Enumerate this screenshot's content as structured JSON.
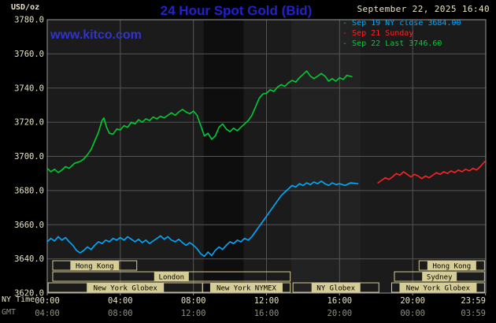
{
  "header": {
    "units": "USD/oz",
    "title": "24 Hour Spot Gold (Bid)",
    "datetime": "September 22, 2025 16:40",
    "watermark": "www.kitco.com"
  },
  "legend": [
    {
      "label": "Sep 19 NY close 3684.00",
      "color": "#00aaff"
    },
    {
      "label": "Sep 21 Sunday",
      "color": "#ff2222"
    },
    {
      "label": "Sep 22 Last 3746.60",
      "color": "#00cc33"
    }
  ],
  "axis": {
    "left_title": "NY Time",
    "gmt_label": "GMT",
    "ny_ticks": [
      "00:00",
      "04:00",
      "08:00",
      "12:00",
      "16:00",
      "20:00",
      "23:59"
    ],
    "gmt_ticks": [
      "04:00",
      "08:00",
      "12:00",
      "16:00",
      "20:00",
      "00:00",
      "03:59"
    ]
  },
  "colors": {
    "title": "#2222cc",
    "watermark": "#3333cc",
    "text": "#e8e4c4",
    "gmt_text": "#8f8f7f",
    "grid": "#555555",
    "border": "#999999",
    "plot_bg": "#1b1b1b",
    "page_bg": "#000000",
    "session": "#d6cc96",
    "band_dark": "#0e0e0e",
    "band_light": "#222222"
  },
  "chart_data": {
    "type": "line",
    "title": "24 Hour Spot Gold (Bid)",
    "ylabel": "USD/oz",
    "ylim": [
      3620,
      3780
    ],
    "ytick_step": 20,
    "xlim_hours": [
      0,
      24
    ],
    "xtick_hours": [
      0,
      4,
      8,
      12,
      16,
      20,
      23.983
    ],
    "grid_hours": [
      4,
      8,
      12,
      16,
      20
    ],
    "grid": true,
    "legend_position": "top-right",
    "shaded_bands": [
      {
        "start": 8.56,
        "end": 10.75,
        "color": "#0e0e0e"
      },
      {
        "start": 13.36,
        "end": 17.15,
        "color": "#222222"
      }
    ],
    "sessions": [
      {
        "row": 0,
        "label": "Hong Kong",
        "start": 0.3,
        "end": 4.9
      },
      {
        "row": 0,
        "label": "Hong Kong",
        "start": 20.35,
        "end": 23.93
      },
      {
        "row": 1,
        "label": "London",
        "start": 0.3,
        "end": 13.3
      },
      {
        "row": 1,
        "label": "Sydney",
        "start": 19.0,
        "end": 23.93
      },
      {
        "row": 2,
        "label": "New York Globex",
        "start": 0.05,
        "end": 8.5
      },
      {
        "row": 2,
        "label": "New York NYMEX",
        "start": 8.5,
        "end": 13.3
      },
      {
        "row": 2,
        "label": "NY Globex",
        "start": 13.45,
        "end": 18.15
      },
      {
        "row": 2,
        "label": "New York Globex",
        "start": 18.85,
        "end": 23.93
      }
    ],
    "series": [
      {
        "name": "Sep 19 NY close",
        "color": "#00aaff",
        "close": 3684.0,
        "points": [
          [
            0,
            3650
          ],
          [
            0.2,
            3652
          ],
          [
            0.4,
            3650.5
          ],
          [
            0.6,
            3653
          ],
          [
            0.8,
            3651
          ],
          [
            1,
            3652.5
          ],
          [
            1.2,
            3650
          ],
          [
            1.4,
            3648
          ],
          [
            1.6,
            3645
          ],
          [
            1.8,
            3643.5
          ],
          [
            2,
            3645
          ],
          [
            2.2,
            3647
          ],
          [
            2.4,
            3645.5
          ],
          [
            2.6,
            3648
          ],
          [
            2.8,
            3650
          ],
          [
            3,
            3649
          ],
          [
            3.2,
            3651
          ],
          [
            3.4,
            3650
          ],
          [
            3.6,
            3652
          ],
          [
            3.8,
            3651
          ],
          [
            4,
            3652.5
          ],
          [
            4.2,
            3651
          ],
          [
            4.4,
            3653
          ],
          [
            4.6,
            3651.5
          ],
          [
            4.8,
            3650
          ],
          [
            5,
            3651.5
          ],
          [
            5.2,
            3649.5
          ],
          [
            5.4,
            3651
          ],
          [
            5.6,
            3649
          ],
          [
            5.8,
            3650.5
          ],
          [
            6,
            3652
          ],
          [
            6.2,
            3653.5
          ],
          [
            6.4,
            3651.5
          ],
          [
            6.6,
            3653
          ],
          [
            6.8,
            3651
          ],
          [
            7,
            3650
          ],
          [
            7.2,
            3651.5
          ],
          [
            7.4,
            3649.5
          ],
          [
            7.6,
            3648
          ],
          [
            7.8,
            3649.5
          ],
          [
            8,
            3648
          ],
          [
            8.2,
            3646
          ],
          [
            8.4,
            3643
          ],
          [
            8.6,
            3641.5
          ],
          [
            8.8,
            3644
          ],
          [
            9,
            3642
          ],
          [
            9.2,
            3645
          ],
          [
            9.4,
            3647
          ],
          [
            9.6,
            3645.5
          ],
          [
            9.8,
            3648
          ],
          [
            10,
            3650
          ],
          [
            10.2,
            3649
          ],
          [
            10.4,
            3651
          ],
          [
            10.6,
            3650
          ],
          [
            10.8,
            3652
          ],
          [
            11,
            3651
          ],
          [
            11.2,
            3653
          ],
          [
            11.4,
            3656
          ],
          [
            11.6,
            3659
          ],
          [
            11.8,
            3662
          ],
          [
            12,
            3665
          ],
          [
            12.2,
            3668
          ],
          [
            12.4,
            3671
          ],
          [
            12.6,
            3674
          ],
          [
            12.8,
            3677
          ],
          [
            13,
            3679
          ],
          [
            13.2,
            3681
          ],
          [
            13.4,
            3683
          ],
          [
            13.6,
            3682
          ],
          [
            13.8,
            3684
          ],
          [
            14,
            3683
          ],
          [
            14.2,
            3684.5
          ],
          [
            14.4,
            3683.5
          ],
          [
            14.6,
            3685
          ],
          [
            14.8,
            3684
          ],
          [
            15,
            3685.5
          ],
          [
            15.2,
            3684
          ],
          [
            15.4,
            3683
          ],
          [
            15.6,
            3684.5
          ],
          [
            15.8,
            3683.5
          ],
          [
            16,
            3684
          ],
          [
            16.3,
            3683
          ],
          [
            16.6,
            3684.5
          ],
          [
            17,
            3684
          ]
        ]
      },
      {
        "name": "Sep 21 Sunday",
        "color": "#ff2222",
        "points": [
          [
            18.1,
            3684.5
          ],
          [
            18.3,
            3686
          ],
          [
            18.5,
            3687.5
          ],
          [
            18.7,
            3686.5
          ],
          [
            18.9,
            3688
          ],
          [
            19.1,
            3690
          ],
          [
            19.3,
            3689
          ],
          [
            19.5,
            3691
          ],
          [
            19.7,
            3689.5
          ],
          [
            19.9,
            3688
          ],
          [
            20.1,
            3689.5
          ],
          [
            20.3,
            3688.5
          ],
          [
            20.5,
            3687
          ],
          [
            20.7,
            3688.5
          ],
          [
            20.9,
            3687.5
          ],
          [
            21.1,
            3689
          ],
          [
            21.3,
            3690.5
          ],
          [
            21.5,
            3689.5
          ],
          [
            21.7,
            3691
          ],
          [
            21.9,
            3690
          ],
          [
            22.1,
            3691.5
          ],
          [
            22.3,
            3690.5
          ],
          [
            22.5,
            3692
          ],
          [
            22.7,
            3691
          ],
          [
            22.9,
            3692.5
          ],
          [
            23.1,
            3691.5
          ],
          [
            23.3,
            3693
          ],
          [
            23.5,
            3692
          ],
          [
            23.7,
            3694
          ],
          [
            23.95,
            3697
          ]
        ]
      },
      {
        "name": "Sep 22",
        "color": "#00cc33",
        "last": 3746.6,
        "points": [
          [
            0,
            3693
          ],
          [
            0.2,
            3691
          ],
          [
            0.4,
            3692.5
          ],
          [
            0.6,
            3690.5
          ],
          [
            0.8,
            3692
          ],
          [
            1,
            3694
          ],
          [
            1.2,
            3693
          ],
          [
            1.5,
            3696
          ],
          [
            1.8,
            3697
          ],
          [
            2,
            3698.5
          ],
          [
            2.2,
            3701
          ],
          [
            2.4,
            3704
          ],
          [
            2.6,
            3709
          ],
          [
            2.8,
            3714
          ],
          [
            3,
            3721
          ],
          [
            3.1,
            3722.5
          ],
          [
            3.25,
            3717
          ],
          [
            3.4,
            3713.5
          ],
          [
            3.6,
            3713
          ],
          [
            3.8,
            3716
          ],
          [
            4,
            3715.5
          ],
          [
            4.2,
            3718
          ],
          [
            4.4,
            3717
          ],
          [
            4.6,
            3720
          ],
          [
            4.8,
            3719
          ],
          [
            5,
            3721.5
          ],
          [
            5.2,
            3720
          ],
          [
            5.4,
            3722
          ],
          [
            5.6,
            3721
          ],
          [
            5.8,
            3723
          ],
          [
            6,
            3722
          ],
          [
            6.2,
            3723.5
          ],
          [
            6.4,
            3722.5
          ],
          [
            6.6,
            3724
          ],
          [
            6.8,
            3725.5
          ],
          [
            7,
            3724
          ],
          [
            7.2,
            3726
          ],
          [
            7.4,
            3727.5
          ],
          [
            7.6,
            3726
          ],
          [
            7.8,
            3725
          ],
          [
            8,
            3726.5
          ],
          [
            8.2,
            3724
          ],
          [
            8.4,
            3718
          ],
          [
            8.6,
            3712
          ],
          [
            8.8,
            3713.5
          ],
          [
            9,
            3710
          ],
          [
            9.2,
            3712
          ],
          [
            9.4,
            3717
          ],
          [
            9.6,
            3719
          ],
          [
            9.8,
            3716
          ],
          [
            10,
            3714.5
          ],
          [
            10.2,
            3716.5
          ],
          [
            10.4,
            3715
          ],
          [
            10.6,
            3717
          ],
          [
            10.8,
            3719
          ],
          [
            11,
            3721
          ],
          [
            11.2,
            3724
          ],
          [
            11.4,
            3729
          ],
          [
            11.6,
            3734
          ],
          [
            11.8,
            3736.5
          ],
          [
            12,
            3737
          ],
          [
            12.2,
            3739
          ],
          [
            12.4,
            3738
          ],
          [
            12.6,
            3740.5
          ],
          [
            12.8,
            3742
          ],
          [
            13,
            3741
          ],
          [
            13.2,
            3743
          ],
          [
            13.4,
            3744.5
          ],
          [
            13.6,
            3743.5
          ],
          [
            13.8,
            3746
          ],
          [
            14,
            3748
          ],
          [
            14.2,
            3750
          ],
          [
            14.4,
            3747
          ],
          [
            14.6,
            3745.5
          ],
          [
            14.8,
            3747
          ],
          [
            15,
            3748.5
          ],
          [
            15.2,
            3747
          ],
          [
            15.4,
            3744
          ],
          [
            15.6,
            3745.5
          ],
          [
            15.8,
            3744
          ],
          [
            16,
            3746
          ],
          [
            16.2,
            3745
          ],
          [
            16.4,
            3747.5
          ],
          [
            16.67,
            3746.6
          ]
        ]
      }
    ]
  }
}
